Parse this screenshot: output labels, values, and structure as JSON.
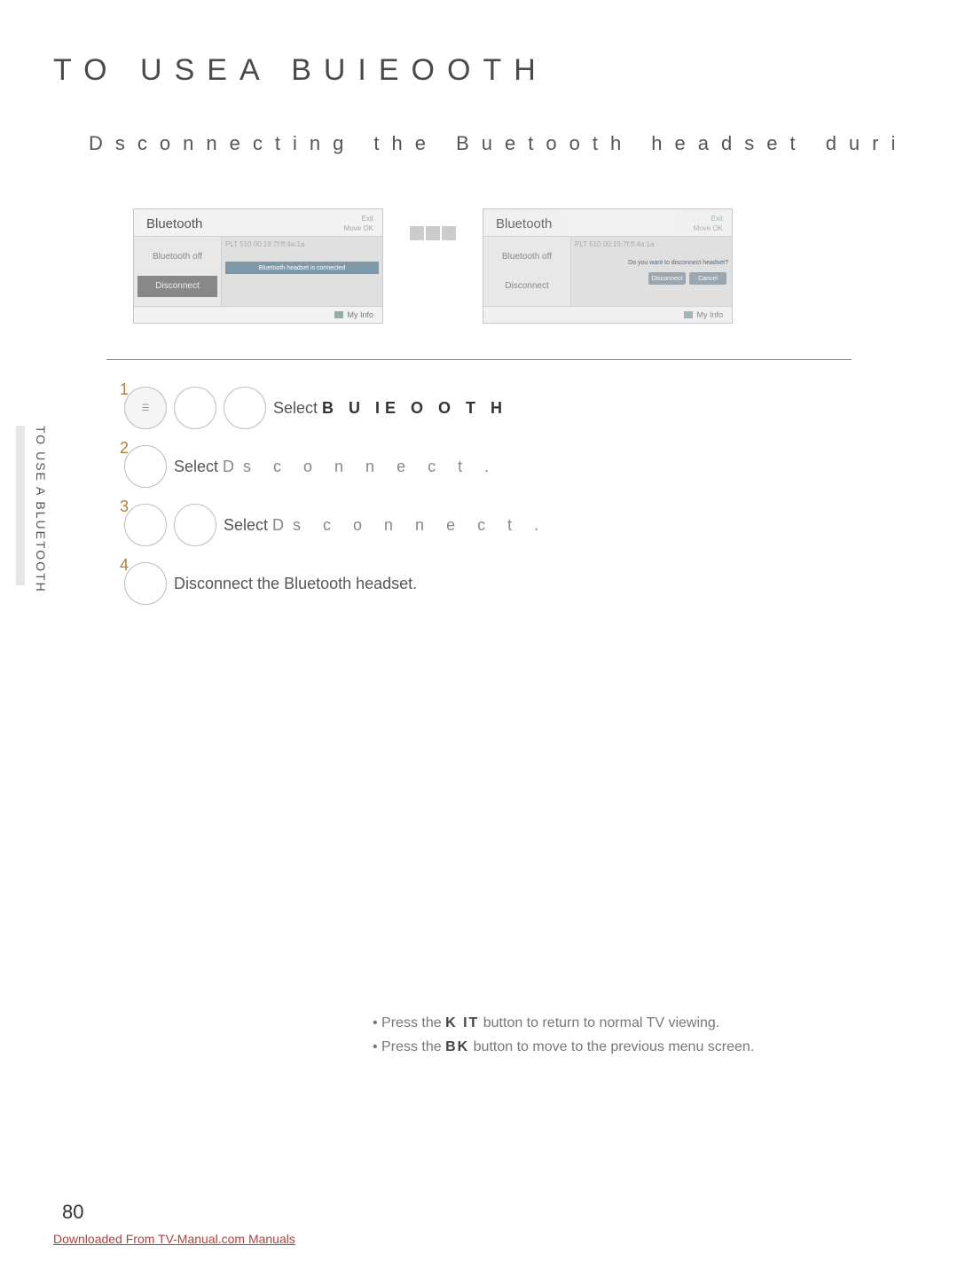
{
  "titles": {
    "main": "TO  USEA  BUIEOOTH",
    "sub": "Dsconnecting  the  Buetooth  headset  duri"
  },
  "side_label": "TO USE A BLUETOOTH",
  "panels": {
    "left": {
      "title": "Bluetooth",
      "exit": "Exit",
      "move_ok": "Move   OK",
      "opt1": "Bluetooth off",
      "opt2": "Disconnect",
      "device_label": "PLT 510\n00:19:7f:ff:4a:1a",
      "status_bar": "Bluetooth headset is connected",
      "my_info": "My Info"
    },
    "right": {
      "title": "Bluetooth",
      "exit": "Exit",
      "move_ok": "Move   OK",
      "opt1": "Bluetooth off",
      "opt2": "Disconnect",
      "device_label": "PLT 510\n00:19:7f:ff:4a:1a",
      "prompt": "Do you want to disconnect headset?",
      "btn_disconnect": "Disconnect",
      "btn_cancel": "Cancel",
      "my_info": "My Info"
    }
  },
  "steps": {
    "s1_prefix": "Select ",
    "s1_bold": "B U IE O O T H",
    "s2_prefix": "Select ",
    "s2_wide": "Ds c o n n e c t .",
    "s3_prefix": "Select ",
    "s3_wide": "Ds c o n n e c t .",
    "s4": "Disconnect the Bluetooth headset."
  },
  "notes": {
    "line1a": "• Press the ",
    "line1b": "K IT",
    "line1c": "  button to return to normal TV viewing.",
    "line2a": "• Press the ",
    "line2b": "BK",
    "line2c": "     button to move to the previous menu screen."
  },
  "page_number": "80",
  "download_link": "Downloaded From TV-Manual.com Manuals"
}
